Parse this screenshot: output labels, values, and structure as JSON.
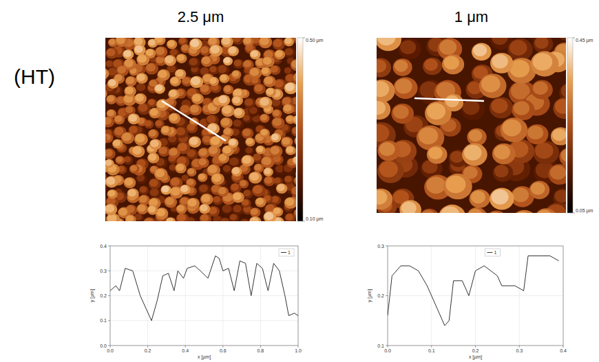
{
  "label": "(HT)",
  "chart_data": [
    {
      "type": "image",
      "title": "2.5 μm",
      "colorbar": {
        "range": [
          0.1,
          0.5
        ],
        "ticks": [
          {
            "value": 0.5,
            "label": "0.50 µm"
          },
          {
            "value": 0.1,
            "label": "0.10 µm"
          }
        ]
      }
    },
    {
      "type": "image",
      "title": "1 μm",
      "colorbar": {
        "range": [
          0.05,
          0.45
        ],
        "ticks": [
          {
            "value": 0.45,
            "label": "0.45 µm"
          },
          {
            "value": 0.05,
            "label": "0.05 µm"
          }
        ]
      }
    },
    {
      "type": "line",
      "xlabel": "x [µm]",
      "ylabel": "y [µm]",
      "x": [
        0,
        0.03,
        0.05,
        0.08,
        0.12,
        0.16,
        0.22,
        0.25,
        0.28,
        0.31,
        0.34,
        0.36,
        0.39,
        0.41,
        0.45,
        0.48,
        0.52,
        0.56,
        0.58,
        0.6,
        0.63,
        0.66,
        0.69,
        0.72,
        0.75,
        0.78,
        0.81,
        0.84,
        0.87,
        0.9,
        0.93,
        0.95,
        0.98,
        1.0
      ],
      "series": [
        {
          "name": "1",
          "color": "#333333",
          "values": [
            0.22,
            0.24,
            0.22,
            0.31,
            0.3,
            0.2,
            0.1,
            0.18,
            0.28,
            0.29,
            0.22,
            0.3,
            0.27,
            0.31,
            0.32,
            0.3,
            0.27,
            0.36,
            0.35,
            0.3,
            0.31,
            0.22,
            0.34,
            0.33,
            0.2,
            0.33,
            0.31,
            0.22,
            0.33,
            0.3,
            0.2,
            0.12,
            0.13,
            0.12
          ]
        }
      ],
      "xlim": [
        0,
        1.0
      ],
      "ylim": [
        0,
        0.4
      ],
      "xticks": [
        {
          "value": 0,
          "label": "0.0"
        },
        0.2,
        0.4,
        0.6,
        0.8,
        {
          "value": 1.0,
          "label": "1.0"
        }
      ],
      "yticks": [
        {
          "value": 0,
          "label": "0.0"
        },
        0.1,
        0.2,
        0.3,
        0.4
      ],
      "grid": true,
      "legend": "upper right"
    },
    {
      "type": "line",
      "xlabel": "x [µm]",
      "ylabel": "y [µm]",
      "x": [
        0,
        0.01,
        0.03,
        0.05,
        0.07,
        0.09,
        0.11,
        0.13,
        0.14,
        0.15,
        0.17,
        0.185,
        0.2,
        0.22,
        0.25,
        0.26,
        0.29,
        0.31,
        0.32,
        0.35,
        0.37,
        0.39
      ],
      "series": [
        {
          "name": "1",
          "color": "#333333",
          "values": [
            0.16,
            0.24,
            0.26,
            0.26,
            0.25,
            0.22,
            0.18,
            0.14,
            0.15,
            0.23,
            0.23,
            0.2,
            0.25,
            0.26,
            0.24,
            0.22,
            0.22,
            0.21,
            0.28,
            0.28,
            0.28,
            0.27
          ]
        }
      ],
      "xlim": [
        0,
        0.4
      ],
      "ylim": [
        0.1,
        0.3
      ],
      "xticks": [
        {
          "value": 0,
          "label": "0.0"
        },
        0.1,
        0.2,
        0.3,
        0.4
      ],
      "yticks": [
        0.1,
        0.2,
        0.3
      ],
      "grid": true,
      "legend": "upper center"
    }
  ]
}
